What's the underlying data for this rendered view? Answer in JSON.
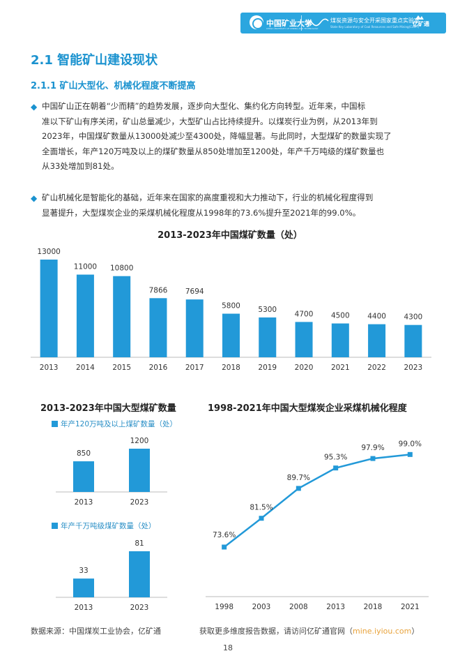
{
  "header": {
    "university": "中国矿业大学",
    "university_en": "CHINA UNIVERSITY OF MINING AND TECHNOLOGY",
    "lab": "煤炭资源与安全开采国家重点实验室",
    "lab_en": "State Key Laboratory of Coal Resources and Safe Mining(CUMT)",
    "brand": "亿矿通",
    "accent": "#2ba6df"
  },
  "section": {
    "title": "2.1 智能矿山建设现状",
    "subtitle": "2.1.1 矿山大型化、机械化程度不断提高"
  },
  "paragraphs": [
    {
      "bullet": "◆",
      "lines": [
        "中国矿山正在朝着“少而精”的趋势发展，逐步向大型化、集约化方向转型。近年来，中国标",
        "准以下矿山有序关闭，矿山总量减少，大型矿山占比持续提升。以煤炭行业为例，从2013年到",
        "2023年，中国煤矿数量从13000处减少至4300处，降幅显著。与此同时，大型煤矿的数量实现了",
        "全面增长，年产120万吨及以上的煤矿数量从850处增加至1200处，年产千万吨级的煤矿数量也",
        "从33处增加到81处。"
      ]
    },
    {
      "bullet": "◆",
      "lines": [
        "矿山机械化是智能化的基础，近年来在国家的高度重视和大力推动下，行业的机械化程度得到",
        "显著提升，大型煤炭企业的采煤机械化程度从1998年的73.6%提升至2021年的99.0%。"
      ]
    }
  ],
  "chart_data": [
    {
      "type": "bar",
      "title": "2013-2023年中国煤矿数量（处）",
      "categories": [
        "2013",
        "2014",
        "2015",
        "2016",
        "2017",
        "2018",
        "2019",
        "2020",
        "2021",
        "2022",
        "2023"
      ],
      "values": [
        13000,
        11000,
        10800,
        7866,
        7694,
        5800,
        5300,
        4700,
        4500,
        4400,
        4300
      ],
      "labels": [
        "13000",
        "11000",
        "10800",
        "7866",
        "7694",
        "5800",
        "5300",
        "4700",
        "4500",
        "4400",
        "4300"
      ],
      "ylim": [
        0,
        13000
      ],
      "color": "#2299d8"
    },
    {
      "type": "bar",
      "title": "2013-2023年中国大型煤矿数量",
      "legend": "年产120万吨及以上煤矿数量（处）",
      "categories": [
        "2013",
        "2023"
      ],
      "values": [
        850,
        1200
      ],
      "labels": [
        "850",
        "1200"
      ],
      "ylim": [
        0,
        1200
      ],
      "color": "#2299d8"
    },
    {
      "type": "bar",
      "title": "",
      "legend": "年产千万吨级煤矿数量（处）",
      "categories": [
        "2013",
        "2023"
      ],
      "values": [
        33,
        81
      ],
      "labels": [
        "33",
        "81"
      ],
      "ylim": [
        0,
        81
      ],
      "color": "#2299d8"
    },
    {
      "type": "line",
      "title": "1998-2021年中国大型煤炭企业采煤机械化程度",
      "categories": [
        "1998",
        "2003",
        "2008",
        "2013",
        "2018",
        "2021"
      ],
      "values": [
        73.6,
        81.5,
        89.7,
        95.3,
        97.9,
        99.0
      ],
      "labels": [
        "73.6%",
        "81.5%",
        "89.7%",
        "95.3%",
        "97.9%",
        "99.0%"
      ],
      "ylim": [
        60,
        105
      ],
      "color": "#2299d8"
    }
  ],
  "footer": {
    "source": "数据来源：中国煤炭工业协会，亿矿通",
    "more_prefix": "获取更多维度报告数据，请访问亿矿通官网（",
    "more_link": "mine.iyiou.com",
    "more_suffix": "）",
    "page": "18"
  }
}
